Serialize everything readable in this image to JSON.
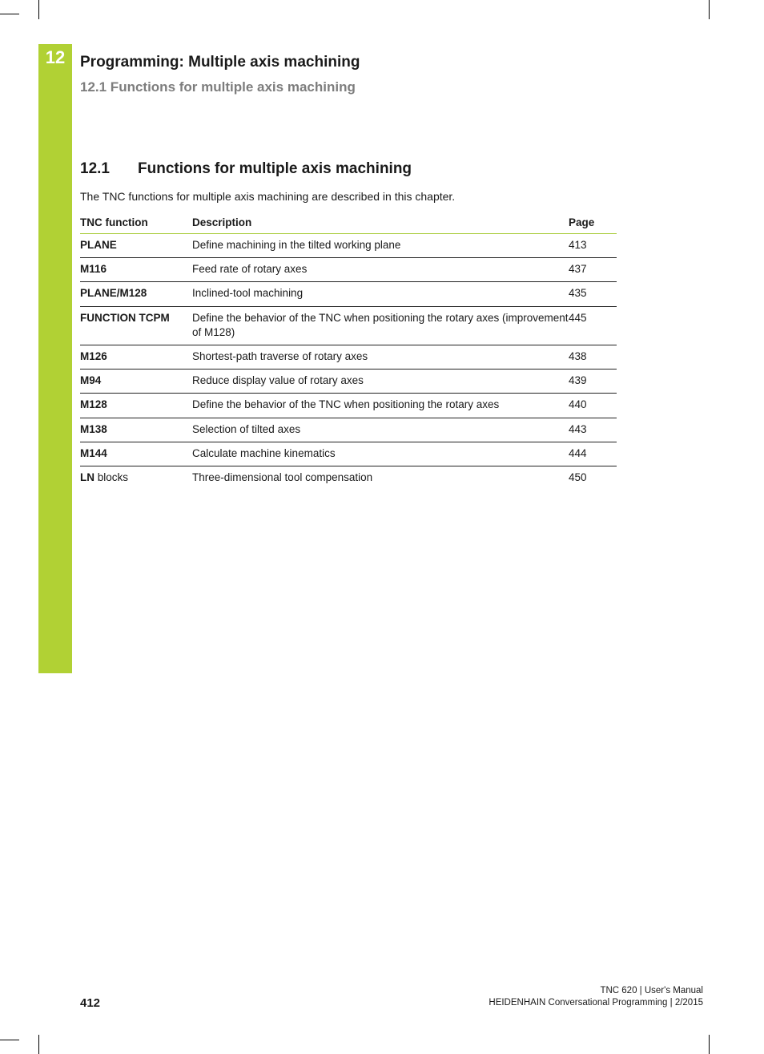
{
  "colors": {
    "green": "#b1d134",
    "green_rule": "#a8cc3a",
    "grey_heading": "#7d7d7d",
    "text": "#1a1a1a",
    "white": "#ffffff"
  },
  "chapter": {
    "number": "12",
    "title": "Programming: Multiple axis machining",
    "section_grey": "12.1   Functions for multiple axis machining"
  },
  "section": {
    "number": "12.1",
    "title": "Functions for multiple axis machining",
    "intro": "The TNC functions for multiple axis machining are described in this chapter."
  },
  "table": {
    "headers": {
      "func": "TNC function",
      "desc": "Description",
      "page": "Page"
    },
    "rows": [
      {
        "func_bold": "PLANE",
        "func_rest": "",
        "desc": "Define machining in the tilted working plane",
        "page": "413"
      },
      {
        "func_bold": "M116",
        "func_rest": "",
        "desc": "Feed rate of rotary axes",
        "page": "437"
      },
      {
        "func_bold": "PLANE/M128",
        "func_rest": "",
        "desc": "Inclined-tool machining",
        "page": "435"
      },
      {
        "func_bold": "FUNCTION TCPM",
        "func_rest": "",
        "desc": "Define the behavior of the TNC when positioning the rotary axes (improvement of M128)",
        "page": "445"
      },
      {
        "func_bold": "M126",
        "func_rest": "",
        "desc": "Shortest-path traverse of rotary axes",
        "page": "438"
      },
      {
        "func_bold": "M94",
        "func_rest": "",
        "desc": "Reduce display value of rotary axes",
        "page": "439"
      },
      {
        "func_bold": "M128",
        "func_rest": "",
        "desc": "Define the behavior of the TNC when positioning the rotary axes",
        "page": "440"
      },
      {
        "func_bold": "M138",
        "func_rest": "",
        "desc": "Selection of tilted axes",
        "page": "443"
      },
      {
        "func_bold": "M144",
        "func_rest": "",
        "desc": "Calculate machine kinematics",
        "page": "444"
      },
      {
        "func_bold": "LN",
        "func_rest": " blocks",
        "desc": "Three-dimensional tool compensation",
        "page": "450"
      }
    ]
  },
  "footer": {
    "page_number": "412",
    "line1": "TNC 620 | User's Manual",
    "line2": "HEIDENHAIN Conversational Programming | 2/2015"
  }
}
